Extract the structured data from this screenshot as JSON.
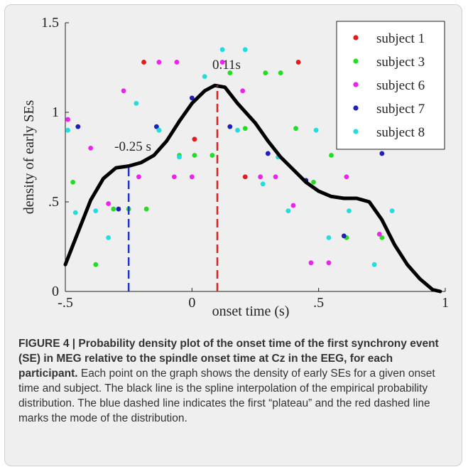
{
  "chart_data": {
    "type": "scatter",
    "xlabel": "onset time (s)",
    "ylabel": "density of early SEs",
    "xlim": [
      -0.5,
      1.0
    ],
    "ylim": [
      0,
      1.5
    ],
    "x_ticks": [
      "-.5",
      "0",
      ".5",
      "1"
    ],
    "y_ticks": [
      "0",
      ".5",
      "1",
      "1.5"
    ],
    "grid": false,
    "legend_position": "top-right",
    "series": [
      {
        "name": "subject 1",
        "color": "#e41a1c",
        "points": [
          [
            -0.19,
            1.28
          ],
          [
            0.01,
            0.85
          ],
          [
            0.21,
            0.64
          ],
          [
            0.42,
            1.28
          ]
        ]
      },
      {
        "name": "subject 3",
        "color": "#22dd22",
        "points": [
          [
            -0.47,
            0.61
          ],
          [
            -0.38,
            0.15
          ],
          [
            -0.31,
            0.46
          ],
          [
            -0.25,
            0.46
          ],
          [
            -0.18,
            0.46
          ],
          [
            -0.13,
            0.9
          ],
          [
            -0.05,
            0.76
          ],
          [
            0.01,
            0.76
          ],
          [
            0.08,
            0.76
          ],
          [
            0.15,
            1.22
          ],
          [
            0.21,
            0.91
          ],
          [
            0.29,
            1.22
          ],
          [
            0.35,
            1.22
          ],
          [
            0.41,
            0.91
          ],
          [
            0.48,
            0.61
          ],
          [
            0.55,
            0.76
          ],
          [
            0.61,
            0.3
          ],
          [
            0.75,
            0.3
          ]
        ]
      },
      {
        "name": "subject 6",
        "color": "#ee22ee",
        "points": [
          [
            -0.49,
            0.96
          ],
          [
            -0.4,
            0.8
          ],
          [
            -0.33,
            0.49
          ],
          [
            -0.27,
            1.12
          ],
          [
            -0.21,
            0.64
          ],
          [
            -0.13,
            1.28
          ],
          [
            -0.07,
            0.64
          ],
          [
            -0.06,
            1.28
          ],
          [
            0.0,
            0.64
          ],
          [
            0.12,
            1.28
          ],
          [
            0.2,
            1.12
          ],
          [
            0.27,
            0.64
          ],
          [
            0.33,
            0.64
          ],
          [
            0.4,
            0.48
          ],
          [
            0.47,
            0.16
          ],
          [
            0.54,
            0.16
          ],
          [
            0.61,
            0.64
          ],
          [
            0.74,
            0.32
          ]
        ]
      },
      {
        "name": "subject 7",
        "color": "#1f1fbb",
        "points": [
          [
            -0.45,
            0.92
          ],
          [
            -0.29,
            0.46
          ],
          [
            -0.14,
            0.92
          ],
          [
            0.0,
            1.08
          ],
          [
            0.15,
            0.92
          ],
          [
            0.3,
            0.77
          ],
          [
            0.45,
            0.62
          ],
          [
            0.6,
            0.31
          ],
          [
            0.75,
            0.77
          ]
        ]
      },
      {
        "name": "subject 8",
        "color": "#22dddd",
        "points": [
          [
            -0.49,
            0.9
          ],
          [
            -0.46,
            0.44
          ],
          [
            -0.38,
            0.45
          ],
          [
            -0.33,
            0.3
          ],
          [
            -0.22,
            1.05
          ],
          [
            -0.13,
            0.9
          ],
          [
            -0.05,
            0.75
          ],
          [
            0.05,
            1.2
          ],
          [
            0.12,
            1.35
          ],
          [
            0.18,
            0.9
          ],
          [
            0.21,
            1.35
          ],
          [
            0.28,
            0.6
          ],
          [
            0.34,
            0.75
          ],
          [
            0.38,
            0.45
          ],
          [
            0.49,
            0.9
          ],
          [
            0.54,
            0.3
          ],
          [
            0.62,
            0.45
          ],
          [
            0.72,
            0.15
          ],
          [
            0.79,
            0.45
          ]
        ]
      }
    ],
    "spline": {
      "color": "#000000",
      "x": [
        -0.5,
        -0.45,
        -0.4,
        -0.35,
        -0.3,
        -0.25,
        -0.2,
        -0.15,
        -0.1,
        -0.05,
        0.0,
        0.05,
        0.09,
        0.13,
        0.18,
        0.25,
        0.3,
        0.35,
        0.4,
        0.45,
        0.5,
        0.55,
        0.6,
        0.65,
        0.7,
        0.75,
        0.8,
        0.85,
        0.9,
        0.95,
        0.98
      ],
      "y": [
        0.15,
        0.33,
        0.51,
        0.63,
        0.69,
        0.7,
        0.72,
        0.76,
        0.84,
        0.95,
        1.05,
        1.12,
        1.15,
        1.14,
        1.05,
        0.94,
        0.84,
        0.75,
        0.68,
        0.61,
        0.56,
        0.53,
        0.52,
        0.52,
        0.5,
        0.4,
        0.26,
        0.15,
        0.07,
        0.01,
        0.0
      ]
    },
    "vlines": [
      {
        "x": -0.25,
        "y_top": 0.7,
        "color": "#2233cc",
        "label": "-0.25 s"
      },
      {
        "x": 0.1,
        "y_top": 1.15,
        "color": "#dd2222",
        "label": "0.11s"
      }
    ]
  },
  "caption": {
    "bold": "FIGURE 4 | Probability density plot of the onset time of the first synchrony event (SE) in MEG relative to the spindle onset time at Cz in the EEG, for each participant.",
    "text": " Each point on the graph shows the density of early SEs for a given onset time and subject. The black line is the spline interpolation of the empirical probability distribution. The blue dashed line indicates the first “plateau” and the red dashed line marks the mode of the distribution."
  }
}
